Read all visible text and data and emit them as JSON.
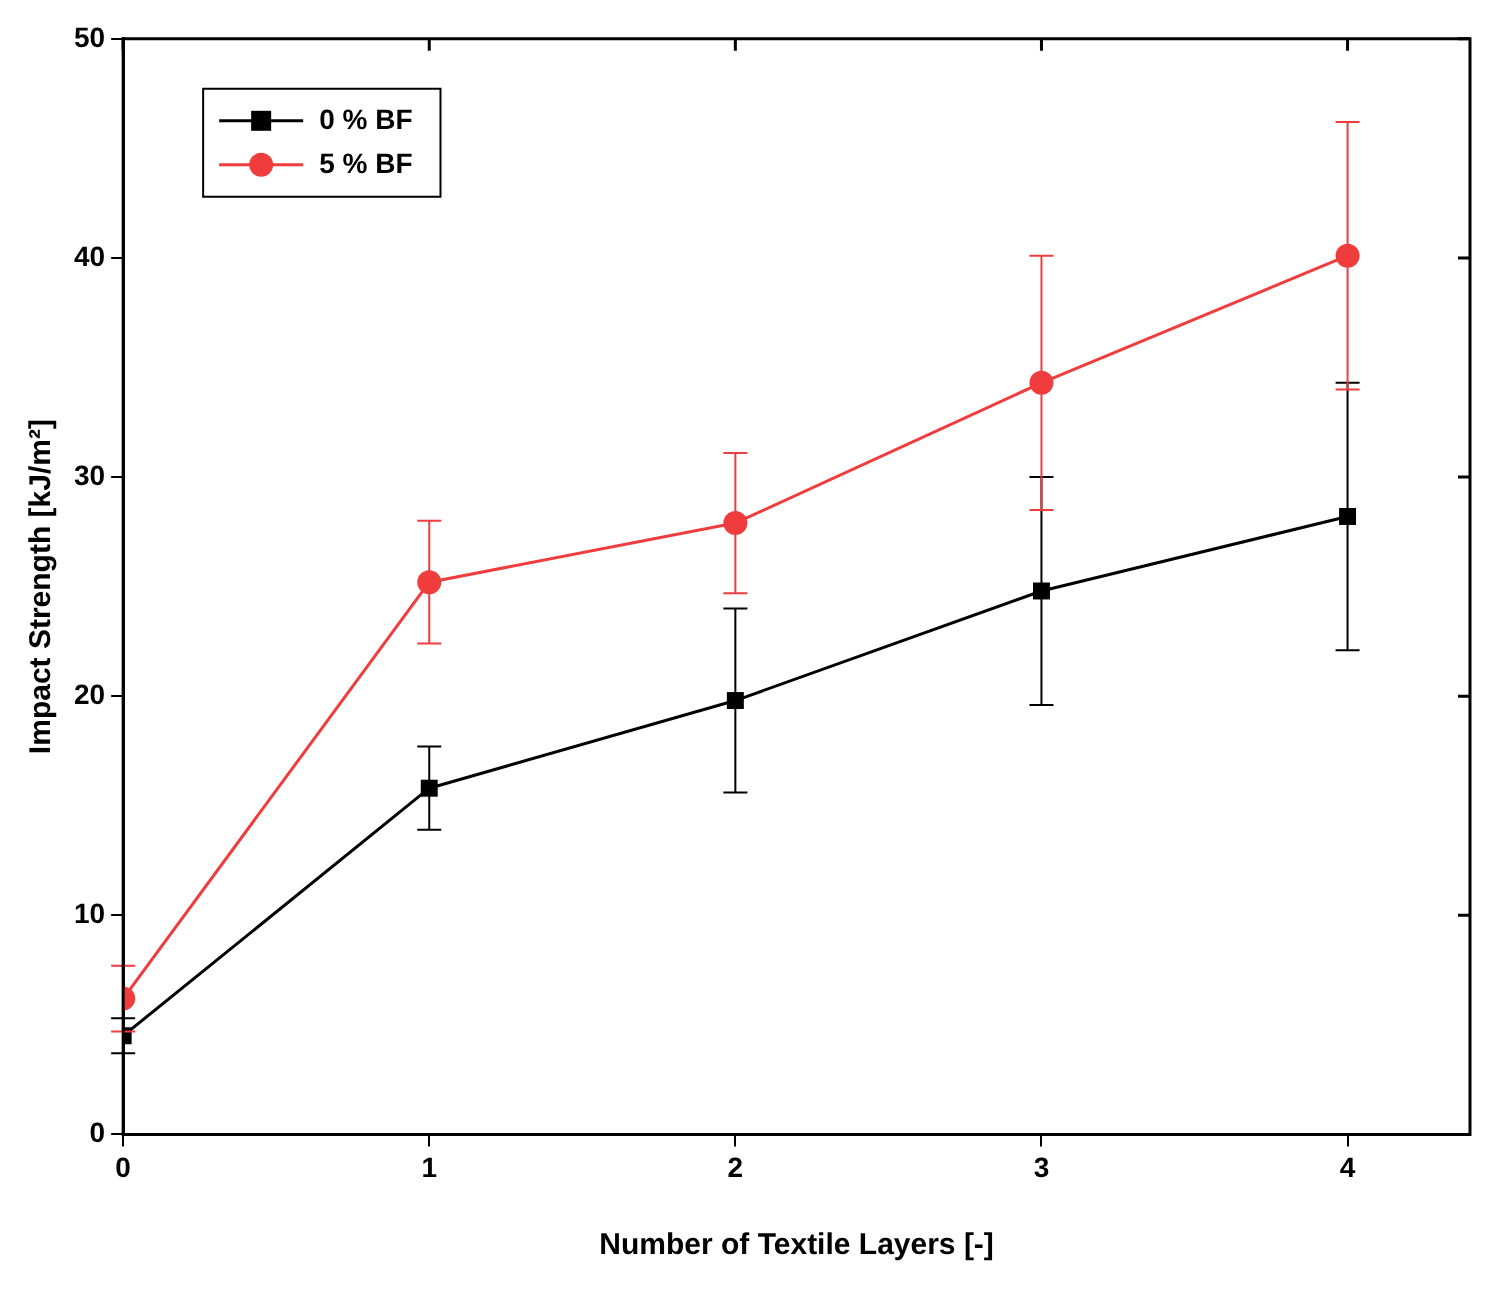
{
  "chart_data": {
    "type": "line",
    "xlabel": "Number of Textile Layers [-]",
    "ylabel": "Impact Strength [kJ/m²]",
    "x": [
      0,
      1,
      2,
      3,
      4
    ],
    "series": [
      {
        "name": "0 % BF",
        "color": "#000000",
        "marker": "square",
        "values": [
          4.5,
          15.8,
          19.8,
          24.8,
          28.2
        ],
        "errors": [
          0.8,
          1.9,
          4.2,
          5.2,
          6.1
        ]
      },
      {
        "name": "5 % BF",
        "color": "#f03c3c",
        "marker": "circle",
        "values": [
          6.2,
          25.2,
          27.9,
          34.3,
          40.1
        ],
        "errors": [
          1.5,
          2.8,
          3.2,
          5.8,
          6.1
        ]
      }
    ],
    "xlim": [
      0,
      4.4
    ],
    "xticks": [
      0,
      1,
      2,
      3,
      4
    ],
    "ylim": [
      0,
      50
    ],
    "yticks": [
      0,
      10,
      20,
      30,
      40,
      50
    ],
    "grid": false,
    "legend": "top left",
    "line_style": "solid"
  }
}
